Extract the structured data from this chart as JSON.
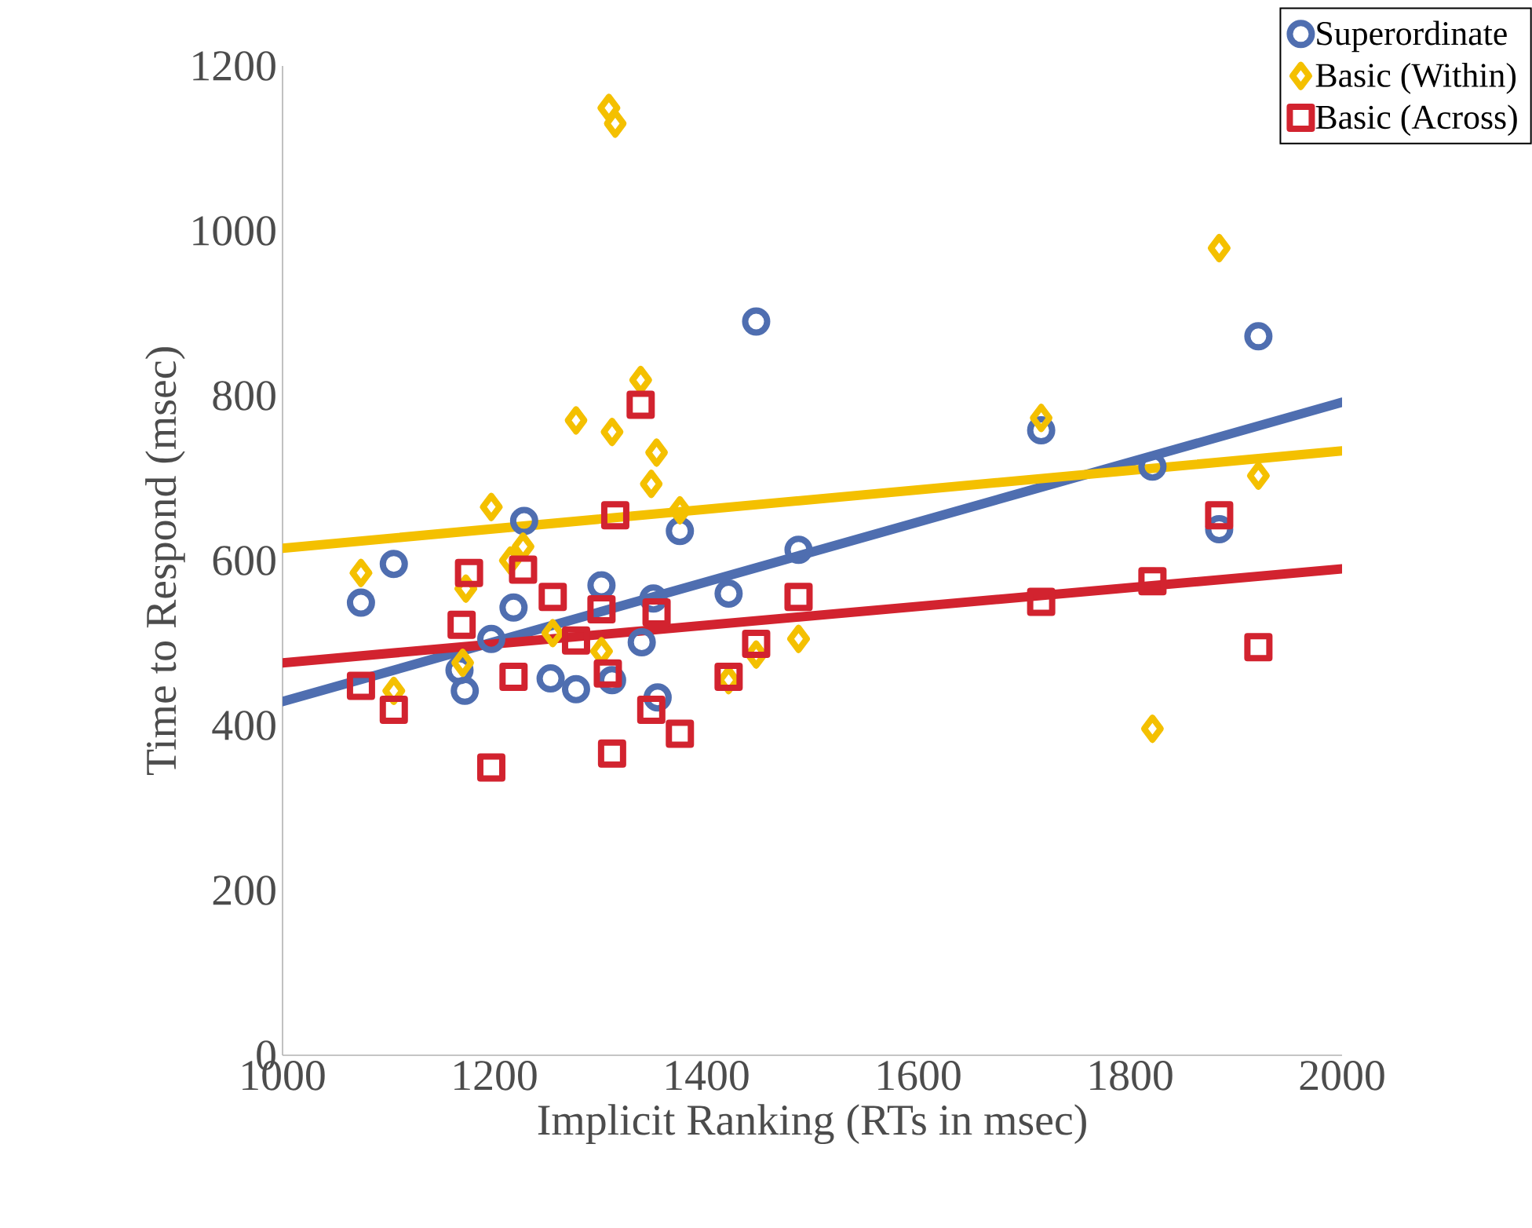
{
  "chart_data": {
    "type": "scatter",
    "xlabel": "Implicit Ranking (RTs in msec)",
    "ylabel": "Time to Respond (msec)",
    "xlim": [
      1000,
      2000
    ],
    "xticks": [
      1000,
      1200,
      1400,
      1600,
      1800,
      2000
    ],
    "ylim": [
      0,
      1200
    ],
    "yticks": [
      0,
      200,
      400,
      600,
      800,
      1000,
      1200
    ],
    "grid": false,
    "legend": "top right",
    "series": [
      {
        "name": "Superordinate",
        "color": "#4f6eb0",
        "marker": "circle",
        "x": [
          1074,
          1105,
          1172,
          1167,
          1197,
          1218,
          1228,
          1253,
          1277,
          1301,
          1311,
          1339,
          1350,
          1354,
          1375,
          1421,
          1447,
          1487,
          1716,
          1821,
          1884,
          1921
        ],
        "values": [
          549,
          596,
          442,
          467,
          505,
          543,
          648,
          457,
          444,
          570,
          455,
          501,
          554,
          434,
          636,
          560,
          890,
          613,
          758,
          714,
          638,
          872
        ]
      },
      {
        "name": "Basic (Within)",
        "color": "#f4c000",
        "marker": "diamond",
        "x": [
          1074,
          1105,
          1173,
          1170,
          1197,
          1215,
          1227,
          1255,
          1277,
          1301,
          1308,
          1311,
          1314,
          1338,
          1348,
          1353,
          1375,
          1421,
          1447,
          1487,
          1716,
          1821,
          1884,
          1921
        ],
        "values": [
          585,
          442,
          566,
          476,
          665,
          600,
          617,
          512,
          770,
          490,
          1149,
          756,
          1130,
          819,
          693,
          731,
          661,
          455,
          486,
          505,
          773,
          396,
          979,
          703
        ]
      },
      {
        "name": "Basic (Across)",
        "color": "#d2232f",
        "marker": "square",
        "x": [
          1074,
          1105,
          1169,
          1176,
          1197,
          1218,
          1227,
          1255,
          1277,
          1301,
          1307,
          1311,
          1314,
          1338,
          1348,
          1353,
          1375,
          1421,
          1447,
          1487,
          1716,
          1821,
          1884,
          1921
        ],
        "values": [
          448,
          419,
          522,
          585,
          349,
          459,
          589,
          556,
          503,
          541,
          463,
          366,
          655,
          789,
          419,
          537,
          390,
          459,
          499,
          556,
          550,
          575,
          655,
          495
        ]
      },
      {
        "type": "line",
        "color": "#4f6eb0",
        "x": [
          1000,
          2000
        ],
        "values": [
          429,
          792
        ]
      },
      {
        "type": "line",
        "color": "#f4c000",
        "x": [
          1000,
          2000
        ],
        "values": [
          615,
          733
        ]
      },
      {
        "type": "line",
        "color": "#d2232f",
        "x": [
          1000,
          2000
        ],
        "values": [
          476,
          590
        ]
      }
    ]
  }
}
